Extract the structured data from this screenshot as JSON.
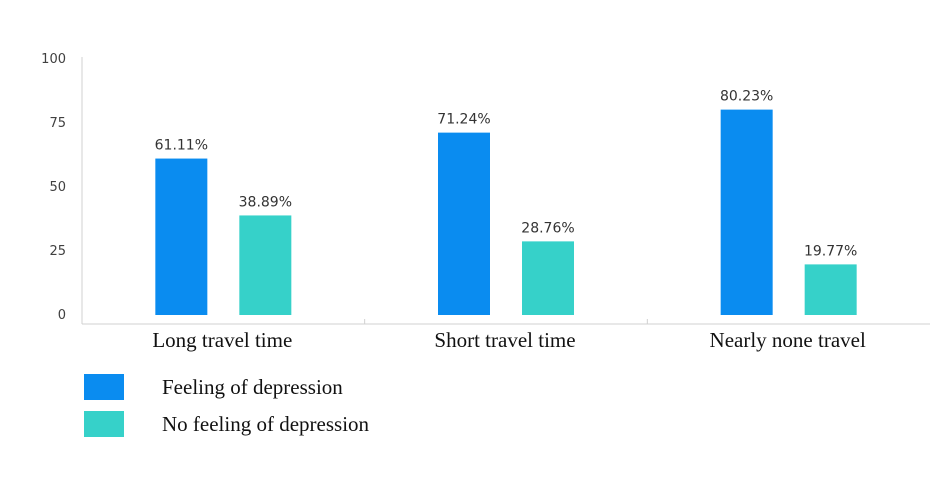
{
  "chart_data": {
    "type": "bar",
    "categories": [
      "Long travel time",
      "Short travel time",
      "Nearly none travel"
    ],
    "series": [
      {
        "name": "Feeling of depression",
        "color": "#0a8cf0",
        "values": [
          61.11,
          71.24,
          80.23
        ],
        "labels": [
          "61.11%",
          "71.24%",
          "80.23%"
        ]
      },
      {
        "name": "No feeling of depression",
        "color": "#36d1c9",
        "values": [
          38.89,
          28.76,
          19.77
        ],
        "labels": [
          "38.89%",
          "28.76%",
          "19.77%"
        ]
      }
    ],
    "ylim": [
      0,
      100
    ],
    "yticks": [
      "0",
      "25",
      "50",
      "75",
      "100"
    ],
    "grid": false,
    "legend_position": "bottom-left"
  }
}
